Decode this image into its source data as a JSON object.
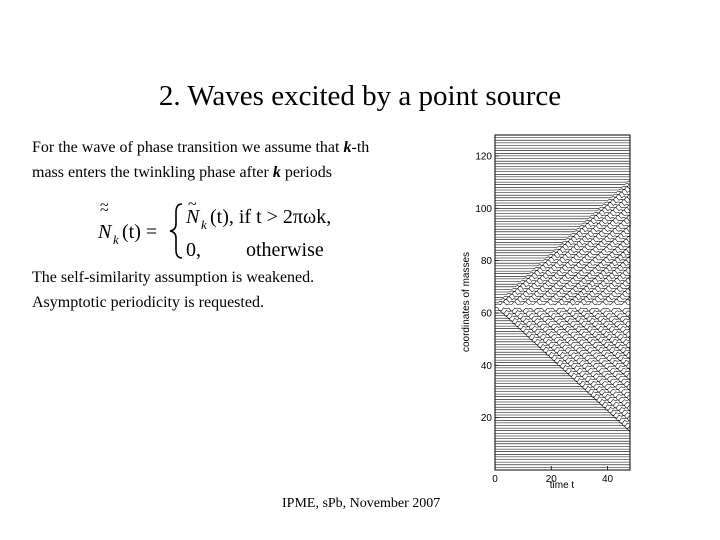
{
  "slide": {
    "title": "2. Waves excited by a point source",
    "para1": {
      "line1_before": "For the wave of phase transition we assume that ",
      "line1_k": "k",
      "line1_after": "-th",
      "line2_before": "mass enters the twinkling phase after ",
      "line2_k": "k",
      "line2_after": " periods"
    },
    "formula": {
      "lhs": "N",
      "lhs_sub": "k",
      "lhs_arg": "(t) =",
      "case1_expr": "N",
      "case1_sub": "k",
      "case1_arg": "(t), if t > 2πωk,",
      "case2_expr": "0,",
      "case2_cond": "otherwise"
    },
    "para2": {
      "line1": "The self-similarity assumption is weakened.",
      "line2": "Asymptotic periodicity is requested."
    },
    "footer": "IPME, sPb, November 2007"
  },
  "chart_data": {
    "type": "line",
    "description_axis": {
      "xlabel": "time t",
      "ylabel": "coordinates of masses",
      "xticks": [
        0,
        20,
        40
      ],
      "yticks": [
        20,
        40,
        60,
        80,
        100,
        120
      ],
      "xlim": [
        0,
        48
      ],
      "ylim": [
        0,
        128
      ]
    },
    "source_mass": 63,
    "front_speed_masses_per_t": 1.0,
    "grid": false
  }
}
